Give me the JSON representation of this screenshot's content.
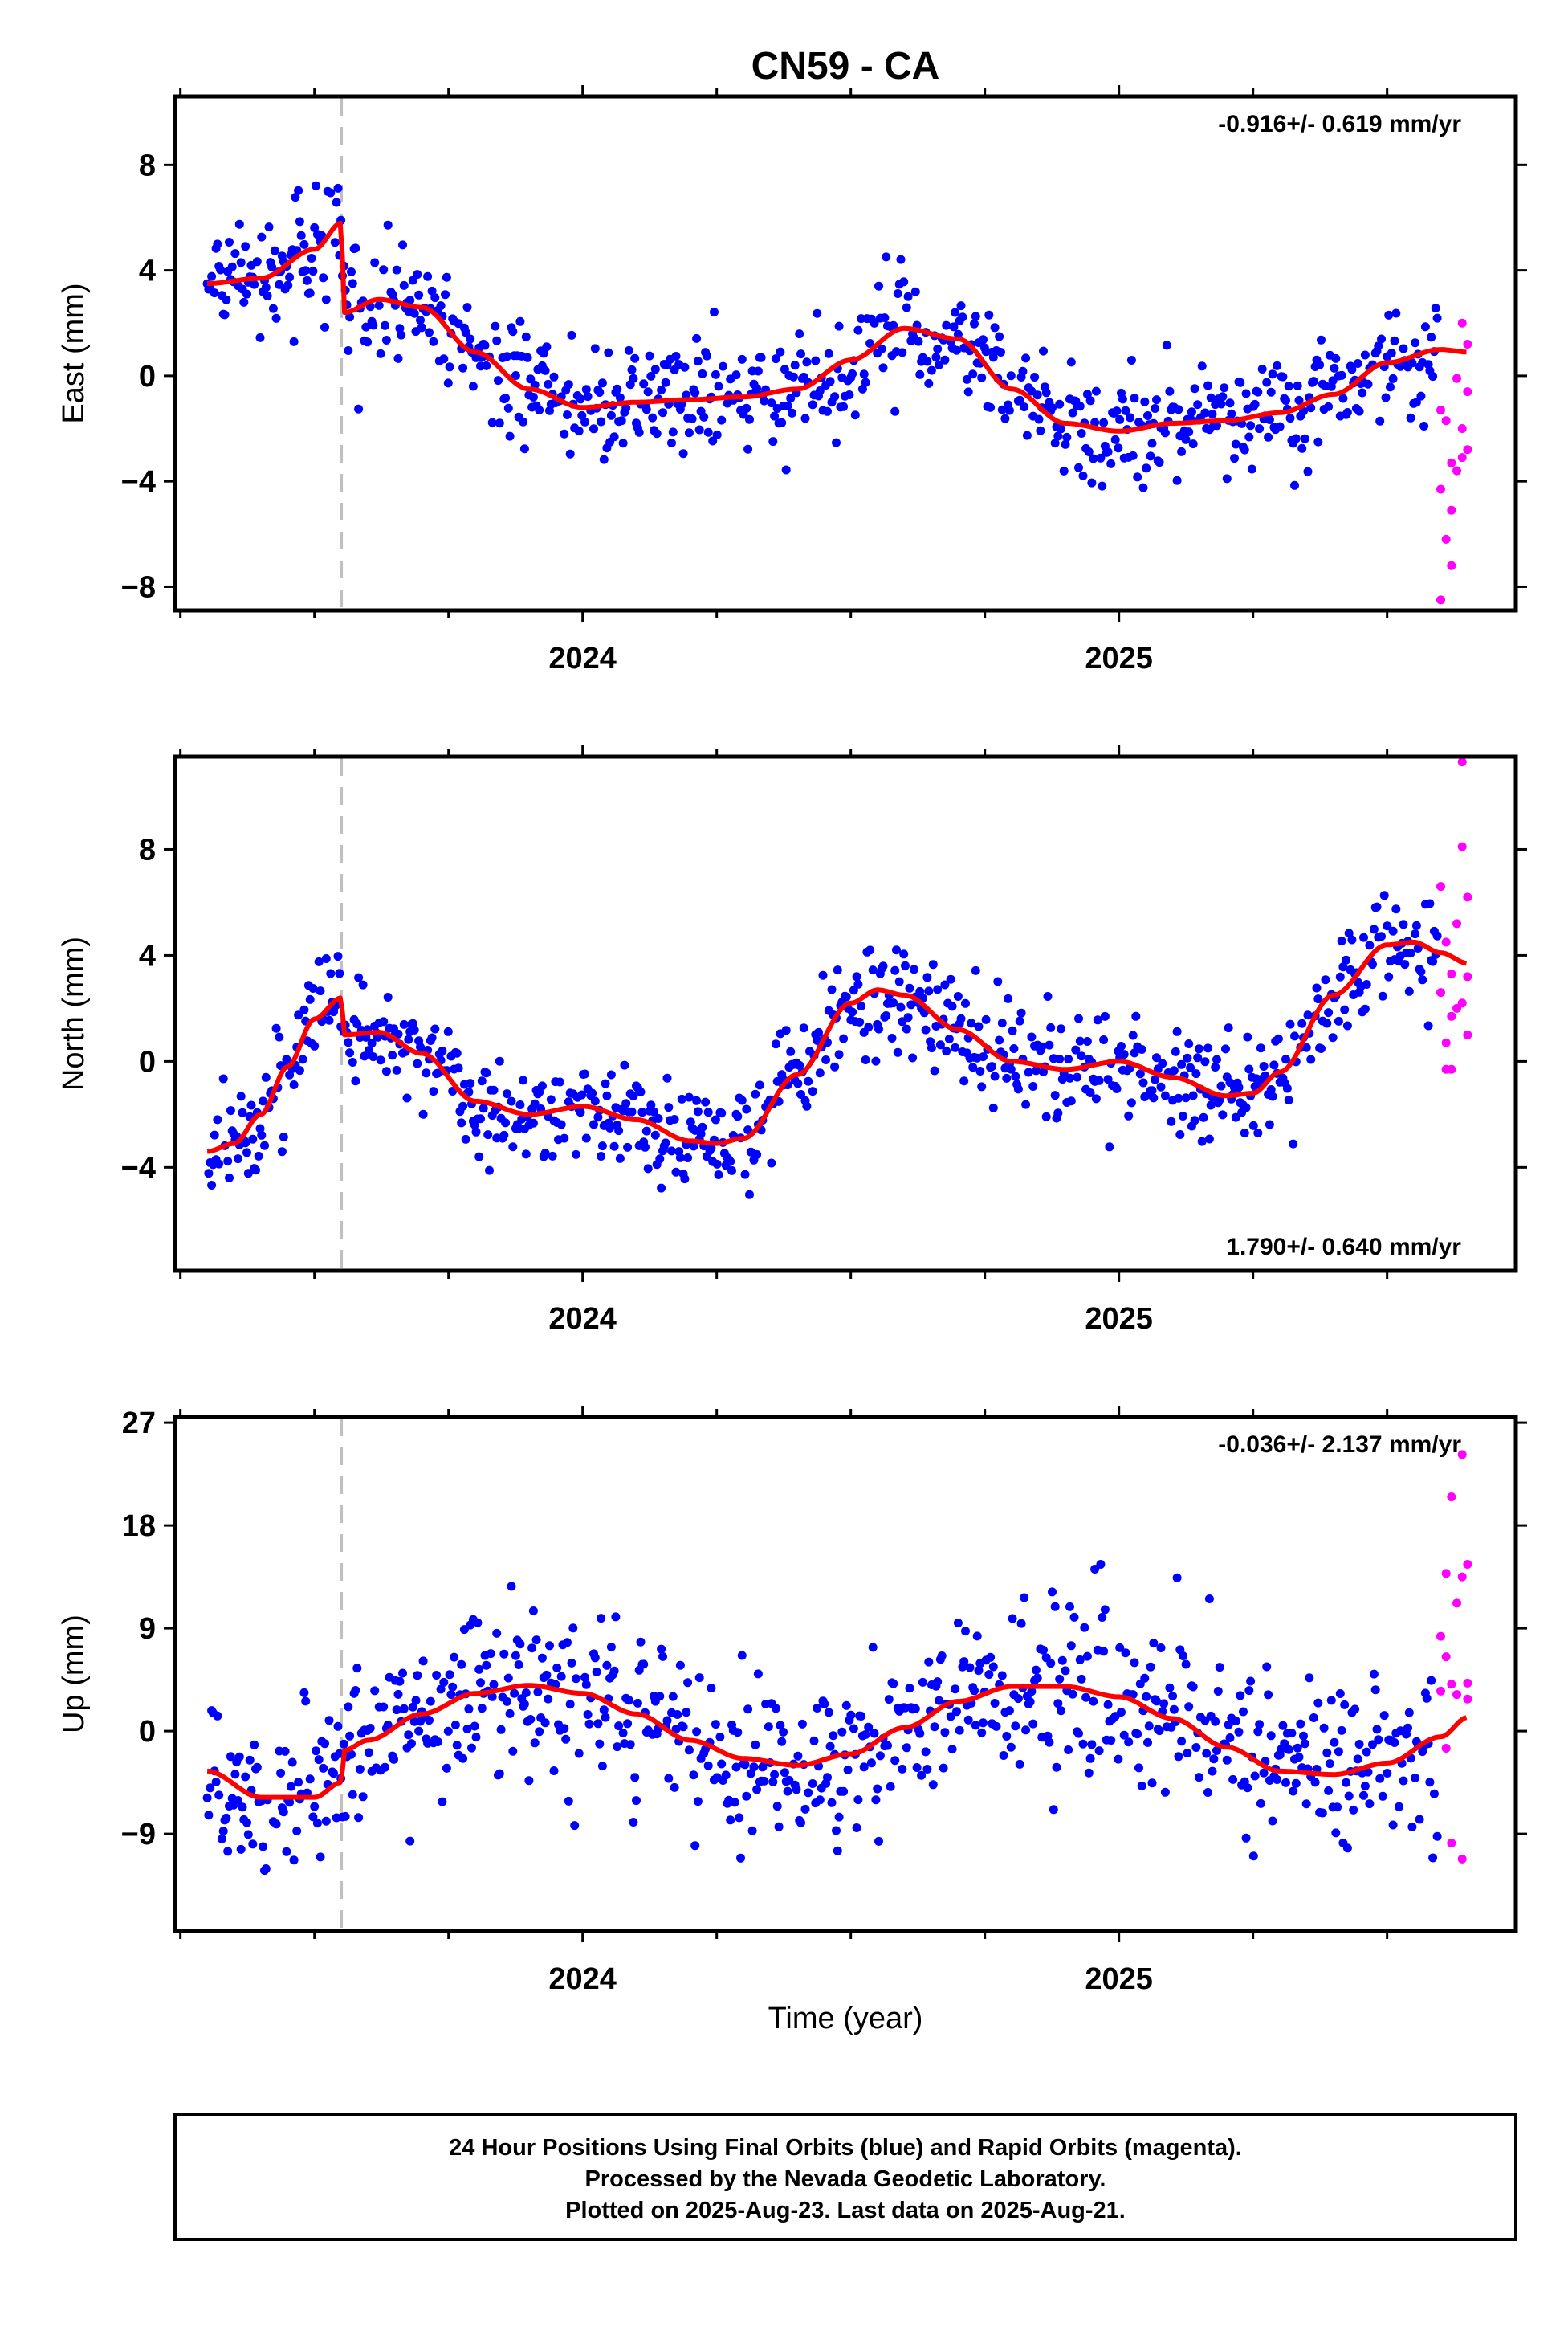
{
  "title": "CN59 - CA",
  "xlabel": "Time (year)",
  "caption": [
    "24 Hour Positions Using Final Orbits (blue) and Rapid Orbits (magenta).",
    "Processed by the Nevada Geodetic Laboratory.",
    "Plotted on 2025-Aug-23. Last data on 2025-Aug-21."
  ],
  "colors": {
    "final": "#0000ff",
    "rapid": "#ff00ff",
    "model": "#ff0000",
    "break": "#c0c0c0"
  },
  "chart_data": [
    {
      "type": "scatter",
      "component": "east",
      "ylabel": "East (mm)",
      "rate_text": "-0.916+/- 0.619 mm/yr",
      "xlim": [
        2023.24,
        2025.74
      ],
      "ylim": [
        -8.9,
        10.6
      ],
      "yticks": [
        -8,
        -4,
        0,
        4,
        8
      ],
      "xticks": [
        2024,
        2025
      ],
      "break_x": 2023.55,
      "model": [
        [
          2023.3,
          3.5
        ],
        [
          2023.4,
          3.7
        ],
        [
          2023.5,
          4.8
        ],
        [
          2023.55,
          5.8
        ],
        [
          2023.555,
          2.4
        ],
        [
          2023.62,
          2.9
        ],
        [
          2023.7,
          2.6
        ],
        [
          2023.8,
          0.9
        ],
        [
          2023.9,
          -0.5
        ],
        [
          2024.0,
          -1.2
        ],
        [
          2024.1,
          -1.0
        ],
        [
          2024.2,
          -0.9
        ],
        [
          2024.3,
          -0.8
        ],
        [
          2024.4,
          -0.5
        ],
        [
          2024.5,
          0.6
        ],
        [
          2024.6,
          1.8
        ],
        [
          2024.7,
          1.4
        ],
        [
          2024.8,
          -0.5
        ],
        [
          2024.9,
          -1.8
        ],
        [
          2025.0,
          -2.1
        ],
        [
          2025.1,
          -1.8
        ],
        [
          2025.2,
          -1.7
        ],
        [
          2025.3,
          -1.4
        ],
        [
          2025.4,
          -0.7
        ],
        [
          2025.5,
          0.5
        ],
        [
          2025.6,
          1.0
        ],
        [
          2025.65,
          0.9
        ]
      ],
      "rapid": [
        [
          2025.6,
          -1.3
        ],
        [
          2025.6,
          -4.3
        ],
        [
          2025.6,
          -8.5
        ],
        [
          2025.61,
          -1.7
        ],
        [
          2025.61,
          -6.2
        ],
        [
          2025.62,
          -3.3
        ],
        [
          2025.62,
          -5.1
        ],
        [
          2025.62,
          -7.2
        ],
        [
          2025.63,
          -3.6
        ],
        [
          2025.63,
          -0.1
        ],
        [
          2025.64,
          2.0
        ],
        [
          2025.64,
          -2.0
        ],
        [
          2025.64,
          -3.1
        ],
        [
          2025.65,
          1.2
        ],
        [
          2025.65,
          -0.6
        ],
        [
          2025.65,
          -2.8
        ]
      ]
    },
    {
      "type": "scatter",
      "component": "north",
      "ylabel": "North (mm)",
      "rate_text": "1.790+/- 0.640 mm/yr",
      "xlim": [
        2023.24,
        2025.74
      ],
      "ylim": [
        -7.9,
        11.5
      ],
      "yticks": [
        -4,
        0,
        4,
        8
      ],
      "xticks": [
        2024,
        2025
      ],
      "break_x": 2023.55,
      "model": [
        [
          2023.3,
          -3.4
        ],
        [
          2023.35,
          -3.1
        ],
        [
          2023.4,
          -2.0
        ],
        [
          2023.45,
          -0.2
        ],
        [
          2023.5,
          1.6
        ],
        [
          2023.55,
          2.4
        ],
        [
          2023.555,
          1.0
        ],
        [
          2023.62,
          1.1
        ],
        [
          2023.7,
          0.3
        ],
        [
          2023.8,
          -1.5
        ],
        [
          2023.9,
          -2.0
        ],
        [
          2024.0,
          -1.7
        ],
        [
          2024.1,
          -2.2
        ],
        [
          2024.2,
          -3.0
        ],
        [
          2024.25,
          -3.1
        ],
        [
          2024.3,
          -2.9
        ],
        [
          2024.4,
          -0.5
        ],
        [
          2024.5,
          2.2
        ],
        [
          2024.55,
          2.7
        ],
        [
          2024.6,
          2.5
        ],
        [
          2024.7,
          1.2
        ],
        [
          2024.8,
          0.0
        ],
        [
          2024.9,
          -0.3
        ],
        [
          2025.0,
          0.0
        ],
        [
          2025.1,
          -0.6
        ],
        [
          2025.2,
          -1.3
        ],
        [
          2025.25,
          -1.2
        ],
        [
          2025.3,
          -0.4
        ],
        [
          2025.4,
          2.5
        ],
        [
          2025.5,
          4.4
        ],
        [
          2025.55,
          4.5
        ],
        [
          2025.6,
          4.1
        ],
        [
          2025.65,
          3.7
        ]
      ],
      "rapid": [
        [
          2025.6,
          6.6
        ],
        [
          2025.6,
          2.6
        ],
        [
          2025.61,
          4.5
        ],
        [
          2025.61,
          0.7
        ],
        [
          2025.61,
          -0.3
        ],
        [
          2025.62,
          1.7
        ],
        [
          2025.62,
          3.3
        ],
        [
          2025.62,
          -0.3
        ],
        [
          2025.63,
          2.0
        ],
        [
          2025.63,
          5.2
        ],
        [
          2025.64,
          8.1
        ],
        [
          2025.64,
          11.3
        ],
        [
          2025.64,
          2.2
        ],
        [
          2025.65,
          6.2
        ],
        [
          2025.65,
          1.0
        ],
        [
          2025.65,
          3.2
        ]
      ]
    },
    {
      "type": "scatter",
      "component": "up",
      "ylabel": "Up (mm)",
      "rate_text": "-0.036+/- 2.137 mm/yr",
      "xlim": [
        2023.24,
        2025.74
      ],
      "ylim": [
        -17.5,
        27.5
      ],
      "yticks": [
        -9,
        0,
        9,
        18,
        27
      ],
      "xticks": [
        2024,
        2025
      ],
      "break_x": 2023.55,
      "model": [
        [
          2023.3,
          -3.5
        ],
        [
          2023.4,
          -5.8
        ],
        [
          2023.5,
          -5.8
        ],
        [
          2023.55,
          -4.5
        ],
        [
          2023.555,
          -1.7
        ],
        [
          2023.6,
          -0.8
        ],
        [
          2023.7,
          1.5
        ],
        [
          2023.8,
          3.3
        ],
        [
          2023.9,
          4.0
        ],
        [
          2024.0,
          3.3
        ],
        [
          2024.1,
          1.5
        ],
        [
          2024.2,
          -0.8
        ],
        [
          2024.3,
          -2.4
        ],
        [
          2024.4,
          -3.0
        ],
        [
          2024.5,
          -2.0
        ],
        [
          2024.6,
          0.3
        ],
        [
          2024.7,
          2.6
        ],
        [
          2024.8,
          3.9
        ],
        [
          2024.9,
          3.9
        ],
        [
          2025.0,
          3.0
        ],
        [
          2025.1,
          1.1
        ],
        [
          2025.2,
          -1.4
        ],
        [
          2025.3,
          -3.5
        ],
        [
          2025.4,
          -3.8
        ],
        [
          2025.5,
          -2.8
        ],
        [
          2025.6,
          -0.5
        ],
        [
          2025.65,
          1.2
        ]
      ],
      "rapid": [
        [
          2025.6,
          3.5
        ],
        [
          2025.6,
          8.3
        ],
        [
          2025.61,
          13.8
        ],
        [
          2025.61,
          6.5
        ],
        [
          2025.61,
          -1.5
        ],
        [
          2025.62,
          20.5
        ],
        [
          2025.62,
          4.1
        ],
        [
          2025.62,
          -9.8
        ],
        [
          2025.63,
          11.2
        ],
        [
          2025.63,
          3.2
        ],
        [
          2025.64,
          24.2
        ],
        [
          2025.64,
          13.5
        ],
        [
          2025.64,
          -11.2
        ],
        [
          2025.65,
          14.6
        ],
        [
          2025.65,
          4.2
        ],
        [
          2025.65,
          2.8
        ]
      ]
    }
  ]
}
